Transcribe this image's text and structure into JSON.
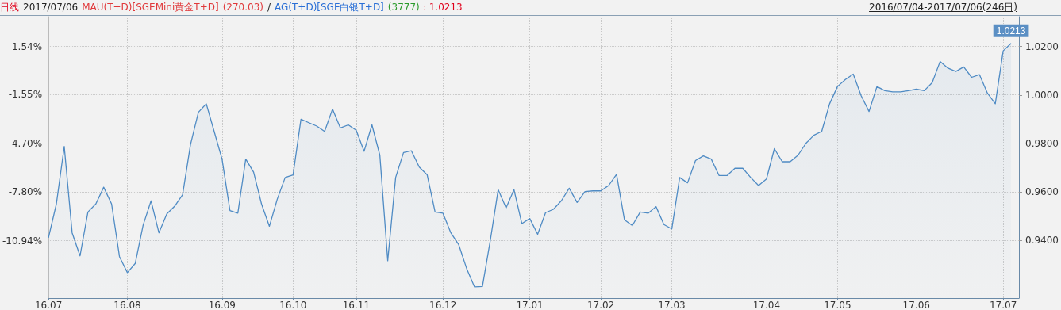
{
  "chart_data": {
    "type": "area",
    "title": "日线",
    "annotations": [
      "2017/07/06",
      "MAU(T+D)[SGEMini黄金T+D]",
      "(270.03)",
      "/",
      "AG(T+D)[SGE白银T+D]",
      "(3777)",
      "：1.0213",
      "2016/07/04-2017/07/06(246日)"
    ],
    "categories": [
      "16.07",
      null,
      null,
      null,
      null,
      null,
      null,
      null,
      null,
      null,
      "16.08",
      null,
      null,
      null,
      null,
      null,
      null,
      null,
      null,
      null,
      null,
      null,
      "16.09",
      null,
      null,
      null,
      null,
      null,
      null,
      null,
      null,
      "16.10",
      null,
      null,
      null,
      null,
      null,
      null,
      null,
      "16.11",
      null,
      null,
      null,
      null,
      null,
      null,
      null,
      null,
      null,
      null,
      "16.12",
      null,
      null,
      null,
      null,
      null,
      null,
      null,
      null,
      null,
      null,
      "17.01",
      null,
      null,
      null,
      null,
      null,
      null,
      null,
      null,
      "17.02",
      null,
      null,
      null,
      null,
      null,
      null,
      null,
      null,
      "17.03",
      null,
      null,
      null,
      null,
      null,
      null,
      null,
      null,
      null,
      null,
      null,
      "17.04",
      null,
      null,
      null,
      null,
      null,
      null,
      null,
      null,
      "17.05",
      null,
      null,
      null,
      null,
      null,
      null,
      null,
      null,
      null,
      "17.06",
      null,
      null,
      null,
      null,
      null,
      null,
      null,
      null,
      null,
      null,
      "17.07",
      null,
      null
    ],
    "series": [
      {
        "color": "#4f8bc4",
        "axis": "y2",
        "values": [
          0.9412,
          0.9551,
          0.9788,
          0.9432,
          0.9337,
          0.9518,
          0.9551,
          0.962,
          0.9551,
          0.9334,
          0.9268,
          0.9306,
          0.9464,
          0.9564,
          0.9432,
          0.951,
          0.9542,
          0.9589,
          0.9796,
          0.9929,
          0.9964,
          0.985,
          0.9736,
          0.9524,
          0.9513,
          0.9736,
          0.9682,
          0.9551,
          0.9459,
          0.9571,
          0.966,
          0.9671,
          0.99,
          0.9886,
          0.9872,
          0.985,
          0.9942,
          0.9864,
          0.9877,
          0.9855,
          0.9768,
          0.9877,
          0.9752,
          0.9317,
          0.966,
          0.9763,
          0.977,
          0.9703,
          0.9671,
          0.9518,
          0.9513,
          0.9432,
          0.9383,
          0.9285,
          0.9209,
          0.9211,
          0.9401,
          0.961,
          0.9535,
          0.961,
          0.947,
          0.9491,
          0.9426,
          0.9515,
          0.9529,
          0.9564,
          0.9616,
          0.9557,
          0.9602,
          0.9605,
          0.9605,
          0.9627,
          0.9673,
          0.9486,
          0.9462,
          0.9518,
          0.9513,
          0.954,
          0.9466,
          0.9448,
          0.966,
          0.9638,
          0.973,
          0.9749,
          0.9736,
          0.9668,
          0.9668,
          0.9698,
          0.9698,
          0.966,
          0.9627,
          0.9654,
          0.9779,
          0.9725,
          0.9725,
          0.9752,
          0.9801,
          0.9834,
          0.985,
          0.9964,
          1.0035,
          1.0064,
          1.0086,
          0.9997,
          0.9932,
          1.0035,
          1.0018,
          1.0013,
          1.0013,
          1.0018,
          1.0024,
          1.0018,
          1.0051,
          1.0138,
          1.0111,
          1.0097,
          1.0116,
          1.0073,
          1.0084,
          1.0008,
          0.9964,
          1.0182,
          1.0213,
          null
        ],
        "value_labels": [
          null,
          null,
          null,
          null,
          null,
          null,
          null,
          null,
          null,
          null,
          null,
          null,
          null,
          null,
          null,
          null,
          null,
          null,
          null,
          null,
          null,
          null,
          null,
          null,
          null,
          null,
          null,
          null,
          null,
          null,
          null,
          null,
          null,
          null,
          null,
          null,
          null,
          null,
          null,
          null,
          null,
          null,
          null,
          null,
          null,
          null,
          null,
          null,
          null,
          null,
          null,
          null,
          null,
          null,
          null,
          null,
          null,
          null,
          null,
          null,
          null,
          null,
          null,
          null,
          null,
          null,
          null,
          null,
          null,
          null,
          null,
          null,
          null,
          null,
          null,
          null,
          null,
          null,
          null,
          null,
          null,
          null,
          null,
          null,
          null,
          null,
          null,
          null,
          null,
          null,
          null,
          null,
          null,
          null,
          null,
          null,
          null,
          null,
          null,
          null,
          null,
          null,
          null,
          null,
          null,
          null,
          null,
          null,
          null,
          null,
          null,
          null,
          null,
          null,
          null,
          null,
          null,
          null,
          null,
          null,
          null,
          null,
          "1.0213",
          null
        ]
      }
    ],
    "ylim": [
      -14.63,
      3.46
    ],
    "yticks": [
      {
        "value": 1.54,
        "label": "1.54%"
      },
      {
        "value": -1.55,
        "label": "-1.55%"
      },
      {
        "value": -4.7,
        "label": "-4.70%"
      },
      {
        "value": -7.8,
        "label": "-7.80%"
      },
      {
        "value": -10.94,
        "label": "-10.94%"
      }
    ],
    "y2lim": [
      0.9163,
      1.0323
    ],
    "y2ticks": [
      {
        "value": 0.94,
        "label": "0.9400"
      },
      {
        "value": 0.96,
        "label": "0.9600"
      },
      {
        "value": 0.98,
        "label": "0.9800"
      },
      {
        "value": 1.0,
        "label": "1.0000"
      },
      {
        "value": 1.02,
        "label": "1.0200"
      }
    ],
    "grid": true,
    "marker": "none"
  }
}
